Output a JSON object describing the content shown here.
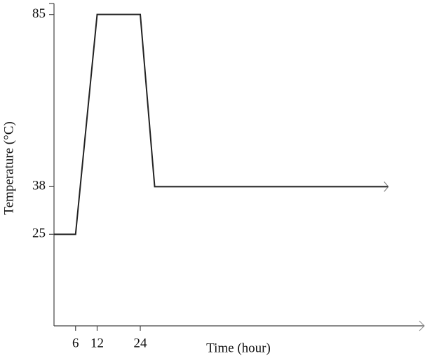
{
  "chart_data": {
    "type": "line",
    "x_label": "Time (hour)",
    "y_label": "Temperature (°C)",
    "x": [
      0,
      6,
      12,
      24,
      28,
      93
    ],
    "series": [
      {
        "color": "#222222",
        "values": [
          25,
          25,
          85,
          85,
          38,
          38
        ]
      }
    ],
    "xlim": [
      0,
      103
    ],
    "ylim": [
      0,
      88
    ],
    "xticks": [
      6,
      12,
      24
    ],
    "yticks": [
      25,
      38,
      85
    ]
  }
}
